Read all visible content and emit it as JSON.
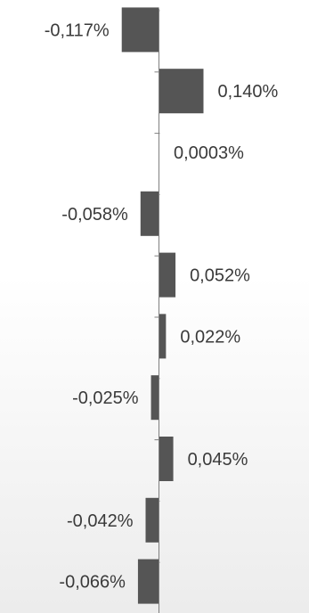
{
  "chart_data": {
    "type": "bar",
    "orientation": "horizontal",
    "values": [
      -0.117,
      0.14,
      0.0003,
      -0.058,
      0.052,
      0.022,
      -0.025,
      0.045,
      -0.042,
      -0.066
    ],
    "labels": [
      "-0,117%",
      "0,140%",
      "0,0003%",
      "-0,058%",
      "0,052%",
      "0,022%",
      "-0,025%",
      "0,045%",
      "-0,042%",
      "-0,066%"
    ],
    "bar_color": "#555555",
    "axis_color": "#7f7f7f",
    "label_color": "#3a3a3a"
  }
}
